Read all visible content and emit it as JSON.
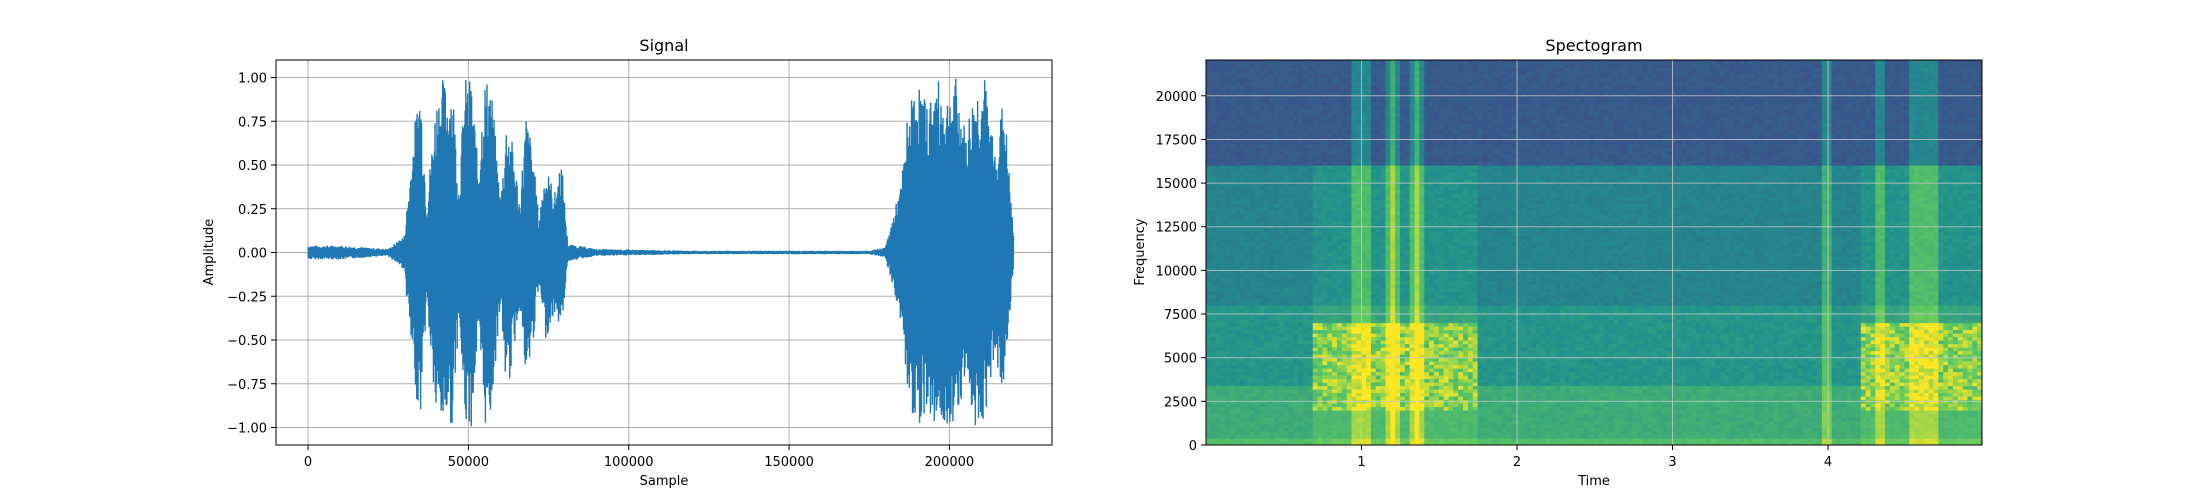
{
  "chart_data": [
    {
      "type": "line",
      "title": "Signal",
      "xlabel": "Sample",
      "ylabel": "Amplitude",
      "xlim": [
        -10000,
        232000
      ],
      "ylim": [
        -1.1,
        1.1
      ],
      "grid": true,
      "line_color": "#1f77b4",
      "xticks": [
        0,
        50000,
        100000,
        150000,
        200000
      ],
      "xtick_labels": [
        "0",
        "50000",
        "100000",
        "150000",
        "200000"
      ],
      "yticks": [
        1.0,
        0.75,
        0.5,
        0.25,
        0.0,
        -0.25,
        -0.5,
        -0.75,
        -1.0
      ],
      "ytick_labels": [
        "1.00",
        "0.75",
        "0.50",
        "0.25",
        "0.00",
        "−0.25",
        "−0.50",
        "−0.75",
        "−1.00"
      ],
      "envelope": {
        "x": [
          0,
          10000,
          25000,
          30000,
          33000,
          35000,
          37000,
          40000,
          42000,
          43500,
          45000,
          47000,
          49000,
          51000,
          53000,
          55000,
          57000,
          60000,
          62000,
          64000,
          66000,
          68000,
          70000,
          72000,
          74000,
          77000,
          79000,
          81000,
          90000,
          120000,
          150000,
          175000,
          180000,
          185000,
          187000,
          190000,
          193000,
          196000,
          199000,
          202000,
          205000,
          208000,
          211000,
          214000,
          217000,
          220000
        ],
        "upper": [
          0.04,
          0.04,
          0.02,
          0.1,
          0.7,
          1.0,
          0.3,
          0.9,
          1.0,
          0.95,
          1.0,
          0.4,
          1.0,
          1.0,
          0.5,
          1.0,
          1.0,
          0.3,
          0.8,
          0.6,
          0.3,
          0.8,
          0.6,
          0.2,
          0.5,
          0.35,
          0.55,
          0.05,
          0.02,
          0.01,
          0.01,
          0.01,
          0.03,
          0.4,
          0.8,
          1.0,
          0.85,
          1.0,
          0.9,
          1.0,
          0.7,
          0.95,
          1.0,
          0.6,
          0.9,
          0.1
        ],
        "lower": [
          -0.04,
          -0.04,
          -0.02,
          -0.1,
          -0.75,
          -0.95,
          -0.3,
          -1.0,
          -1.0,
          -0.95,
          -1.0,
          -0.4,
          -1.0,
          -1.0,
          -0.5,
          -1.0,
          -0.95,
          -0.3,
          -0.85,
          -0.6,
          -0.3,
          -0.8,
          -0.55,
          -0.2,
          -0.5,
          -0.35,
          -0.45,
          -0.05,
          -0.02,
          -0.01,
          -0.01,
          -0.01,
          -0.03,
          -0.4,
          -0.85,
          -1.0,
          -0.9,
          -1.0,
          -1.0,
          -0.95,
          -0.75,
          -1.0,
          -0.95,
          -0.6,
          -0.8,
          -0.1
        ]
      }
    },
    {
      "type": "heatmap",
      "title": "Spectogram",
      "xlabel": "Time",
      "ylabel": "Frequency",
      "xlim": [
        0.0,
        4.99
      ],
      "ylim": [
        0,
        22050
      ],
      "grid": true,
      "colormap": "viridis",
      "xticks": [
        1,
        2,
        3,
        4
      ],
      "xtick_labels": [
        "1",
        "2",
        "3",
        "4"
      ],
      "yticks": [
        0,
        2500,
        5000,
        7500,
        10000,
        12500,
        15000,
        17500,
        20000
      ],
      "ytick_labels": [
        "0",
        "2500",
        "5000",
        "7500",
        "10000",
        "12500",
        "15000",
        "17500",
        "20000"
      ],
      "bands": [
        {
          "f0": 16000,
          "f1": 22050,
          "level": 0.28
        },
        {
          "f0": 8000,
          "f1": 16000,
          "level": 0.45
        },
        {
          "f0": 3500,
          "f1": 8000,
          "level": 0.52
        },
        {
          "f0": 500,
          "f1": 3500,
          "level": 0.62
        },
        {
          "f0": 0,
          "f1": 500,
          "level": 0.7
        }
      ],
      "active_segments": [
        {
          "t0": 0.7,
          "t1": 1.75,
          "level": 0.92
        },
        {
          "t0": 4.2,
          "t1": 4.99,
          "level": 0.92
        }
      ],
      "vertical_streaks": [
        0.98,
        1.02,
        1.18,
        1.22,
        1.35,
        1.38,
        3.98,
        4.32,
        4.55,
        4.62,
        4.67
      ]
    }
  ]
}
